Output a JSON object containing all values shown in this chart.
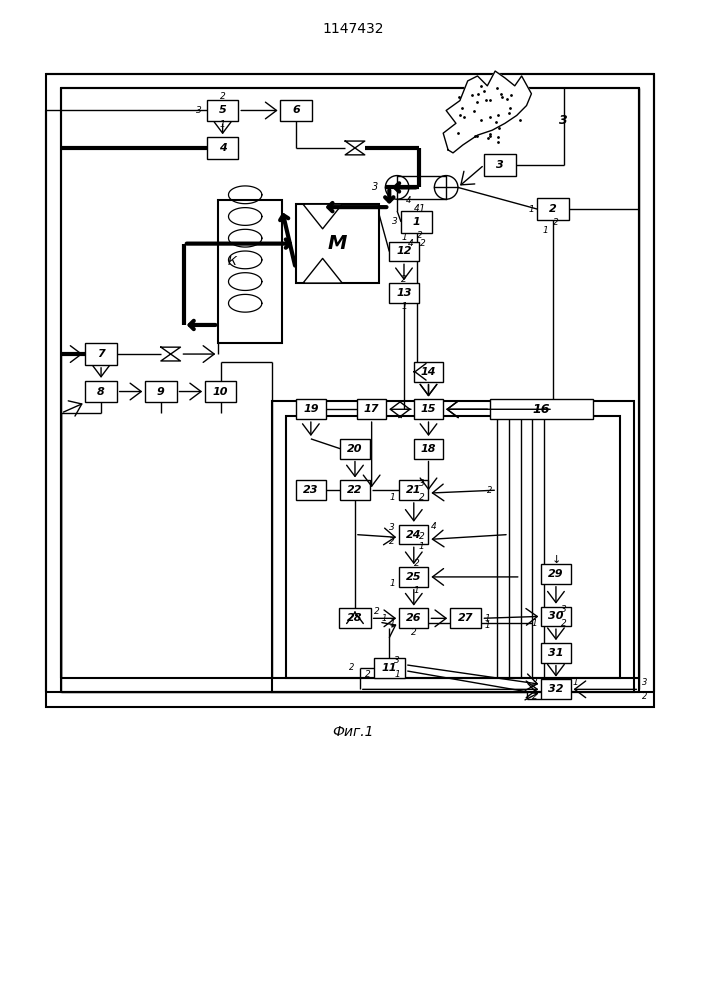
{
  "title": "1147432",
  "caption": "Фиг.1",
  "bg": "#ffffff"
}
